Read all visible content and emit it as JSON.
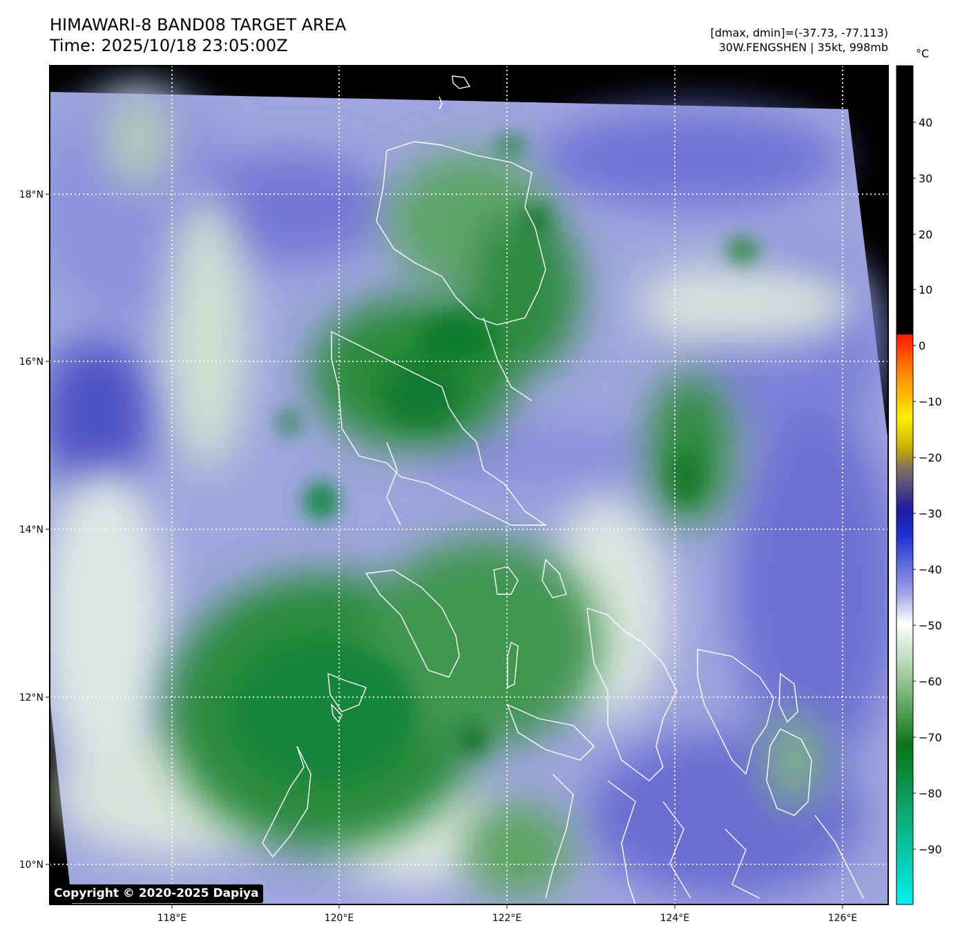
{
  "header": {
    "title_line1": "HIMAWARI-8 BAND08 TARGET AREA",
    "title_line2": "Time: 2025/10/18 23:05:00Z",
    "info_line1": "[dmax, dmin]=(-37.73, -77.113)",
    "info_line2": "30W.FENGSHEN | 35kt, 998mb"
  },
  "map": {
    "lat_labels": [
      "18°N",
      "16°N",
      "14°N",
      "12°N",
      "10°N"
    ],
    "lon_labels": [
      "118°E",
      "120°E",
      "122°E",
      "124°E",
      "126°E"
    ],
    "colors": {
      "cold_cloud_green": "#0f7a27",
      "mid_cloud_blue": "#6f73d6",
      "warm_white": "#f2f6f1",
      "no_data_black": "#000000",
      "coastline": "#ffffff"
    }
  },
  "colorbar": {
    "unit": "°C",
    "ticks": [
      "40",
      "30",
      "20",
      "10",
      "0",
      "−10",
      "−20",
      "−30",
      "−40",
      "−50",
      "−60",
      "−70",
      "−80",
      "−90"
    ]
  },
  "copyright": "Copyright © 2020-2025 Dapiya"
}
